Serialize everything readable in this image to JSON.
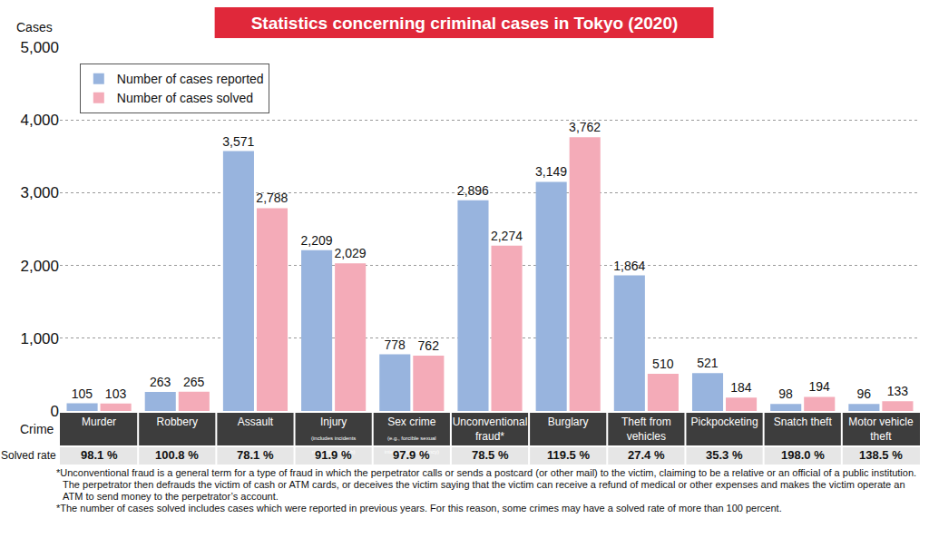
{
  "chart_data": {
    "type": "bar",
    "title": "Statistics concerning criminal cases in Tokyo (2020)",
    "ylabel": "Cases",
    "categories": [
      "Murder",
      "Robbery",
      "Assault",
      "Injury",
      "Sex crime",
      "Unconventional fraud*",
      "Burglary",
      "Theft from vehicles",
      "Pickpocketing",
      "Snatch theft",
      "Motor vehicle theft"
    ],
    "category_notes": [
      null,
      null,
      null,
      "(includes incidents resulting in death)",
      "(e.g., forcible sexual intercourse/indecency)",
      null,
      null,
      null,
      null,
      null,
      null
    ],
    "series": [
      {
        "name": "Number of cases reported",
        "color": "#98b4de",
        "values": [
          105,
          263,
          3571,
          2209,
          778,
          2896,
          3149,
          1864,
          521,
          98,
          96
        ],
        "value_labels": [
          "105",
          "263",
          "3,571",
          "2,209",
          "778",
          "2,896",
          "3,149",
          "1,864",
          "521",
          "98",
          "96"
        ]
      },
      {
        "name": "Number of cases solved",
        "color": "#f4abb8",
        "values": [
          103,
          265,
          2788,
          2029,
          762,
          2274,
          3762,
          510,
          184,
          194,
          133
        ],
        "value_labels": [
          "103",
          "265",
          "2,788",
          "2,029",
          "762",
          "2,274",
          "3,762",
          "510",
          "184",
          "194",
          "133"
        ]
      }
    ],
    "ylim": [
      0,
      5000
    ],
    "yticks": [
      0,
      {
        "value": 1000,
        "label": "1,000"
      },
      {
        "value": 2000,
        "label": "2,000"
      },
      {
        "value": 3000,
        "label": "3,000"
      },
      {
        "value": 4000,
        "label": "4,000"
      },
      {
        "value": 5000,
        "label": "5,000"
      }
    ],
    "grid": true,
    "legend": "top left",
    "data_labels": true,
    "table_rows": {
      "category_header": "Crime",
      "rate_header": "Solved rate",
      "solved_rates": [
        "98.1 %",
        "100.8 %",
        "78.1 %",
        "91.9 %",
        "97.9 %",
        "78.5 %",
        "119.5 %",
        "27.4 %",
        "35.3 %",
        "198.0 %",
        "138.5 %"
      ]
    },
    "notes": [
      "*Unconventional fraud is a general term for a type of fraud in which the perpetrator calls or sends a postcard (or other mail) to the victim, claiming to be a relative or an official of a public institution. The perpetrator then defrauds the victim of cash or ATM cards, or deceives the victim saying that the victim can receive a refund of medical or other expenses and makes the victim operate an ATM to send money to the perpetrator’s account.",
      "*The number of cases solved includes cases which were reported in previous years. For this reason, some crimes may have a solved rate of more than 100 percent."
    ]
  }
}
